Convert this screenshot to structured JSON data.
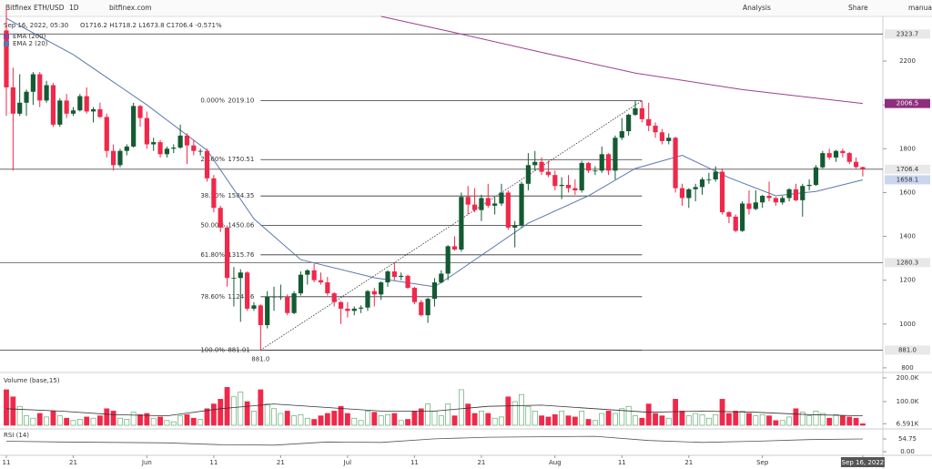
{
  "toolbar": {
    "symbol": "Bitfinex ETH/USD",
    "interval": "1D",
    "site": "bitfinex.com",
    "analysis": "Analysis",
    "share": "Share",
    "mode": "manual"
  },
  "chart_data": [
    {
      "type": "candlestick",
      "legend_date": "Sep 16, 2022, 05:30",
      "legend_ohlc": "O1716.2  H1718.2  L1673.8  C1706.4  -0.571%",
      "up_color": "#145a32",
      "down_color": "#f0284a",
      "xlim": [
        -0.95,
        131.0
      ],
      "xticks": [
        {
          "value": 0,
          "label": "11"
        },
        {
          "value": 10,
          "label": "21"
        },
        {
          "value": 21,
          "label": "Jun"
        },
        {
          "value": 31,
          "label": "11"
        },
        {
          "value": 41,
          "label": "21"
        },
        {
          "value": 51,
          "label": "Jul"
        },
        {
          "value": 61,
          "label": "11"
        },
        {
          "value": 71,
          "label": "21"
        },
        {
          "value": 82,
          "label": "Aug"
        },
        {
          "value": 92,
          "label": "11"
        },
        {
          "value": 102,
          "label": "21"
        },
        {
          "value": 113,
          "label": "Sep"
        },
        {
          "value": 128,
          "label": "Sep 16, 2022"
        }
      ],
      "ylim": [
        783,
        2404
      ],
      "yticks": [
        800,
        1000,
        1200,
        1400,
        1600,
        1800,
        2000,
        2200
      ],
      "ohlc": [
        [
          2340,
          2450,
          1950,
          2080
        ],
        [
          2080,
          2170,
          1700,
          1960
        ],
        [
          1960,
          2140,
          1950,
          2010
        ],
        [
          2010,
          2070,
          1950,
          2060
        ],
        [
          2060,
          2150,
          2000,
          2140
        ],
        [
          2140,
          2150,
          1990,
          2020
        ],
        [
          2020,
          2110,
          2010,
          2090
        ],
        [
          2090,
          2100,
          1900,
          1910
        ],
        [
          1910,
          2030,
          1900,
          2020
        ],
        [
          2020,
          2050,
          1940,
          1960
        ],
        [
          1960,
          1990,
          1950,
          1975
        ],
        [
          1975,
          2050,
          1970,
          2040
        ],
        [
          2040,
          2080,
          1960,
          1970
        ],
        [
          1970,
          1990,
          1920,
          1980
        ],
        [
          1980,
          2010,
          1940,
          1945
        ],
        [
          1945,
          1960,
          1760,
          1790
        ],
        [
          1790,
          1820,
          1700,
          1725
        ],
        [
          1725,
          1800,
          1715,
          1790
        ],
        [
          1790,
          1820,
          1770,
          1810
        ],
        [
          1810,
          2010,
          1805,
          1995
        ],
        [
          1995,
          2000,
          1900,
          1940
        ],
        [
          1940,
          1970,
          1800,
          1820
        ],
        [
          1820,
          1850,
          1790,
          1830
        ],
        [
          1830,
          1840,
          1760,
          1775
        ],
        [
          1775,
          1810,
          1760,
          1800
        ],
        [
          1800,
          1820,
          1780,
          1805
        ],
        [
          1805,
          1910,
          1800,
          1860
        ],
        [
          1860,
          1870,
          1730,
          1815
        ],
        [
          1815,
          1840,
          1770,
          1790
        ],
        [
          1790,
          1800,
          1770,
          1790
        ],
        [
          1790,
          1800,
          1650,
          1665
        ],
        [
          1665,
          1680,
          1510,
          1530
        ],
        [
          1530,
          1540,
          1420,
          1440
        ],
        [
          1440,
          1450,
          1170,
          1210
        ],
        [
          1210,
          1260,
          1080,
          1210
        ],
        [
          1210,
          1250,
          1010,
          1235
        ],
        [
          1235,
          1240,
          1060,
          1070
        ],
        [
          1070,
          1100,
          1060,
          1085
        ],
        [
          1085,
          1090,
          881,
          995
        ],
        [
          995,
          1150,
          980,
          1125
        ],
        [
          1125,
          1170,
          1060,
          1125
        ],
        [
          1125,
          1180,
          1110,
          1125
        ],
        [
          1125,
          1135,
          1040,
          1050
        ],
        [
          1050,
          1150,
          1045,
          1140
        ],
        [
          1140,
          1240,
          1130,
          1225
        ],
        [
          1225,
          1250,
          1180,
          1245
        ],
        [
          1245,
          1275,
          1190,
          1200
        ],
        [
          1200,
          1235,
          1180,
          1190
        ],
        [
          1190,
          1215,
          1130,
          1140
        ],
        [
          1140,
          1145,
          1080,
          1100
        ],
        [
          1100,
          1105,
          1000,
          1070
        ],
        [
          1070,
          1100,
          1030,
          1060
        ],
        [
          1060,
          1080,
          1040,
          1070
        ],
        [
          1070,
          1085,
          1050,
          1075
        ],
        [
          1075,
          1155,
          1060,
          1150
        ],
        [
          1150,
          1165,
          1080,
          1135
        ],
        [
          1135,
          1195,
          1110,
          1190
        ],
        [
          1190,
          1245,
          1170,
          1240
        ],
        [
          1240,
          1280,
          1200,
          1215
        ],
        [
          1215,
          1235,
          1200,
          1220
        ],
        [
          1220,
          1225,
          1160,
          1165
        ],
        [
          1165,
          1170,
          1090,
          1100
        ],
        [
          1100,
          1110,
          1035,
          1040
        ],
        [
          1040,
          1120,
          1005,
          1115
        ],
        [
          1115,
          1210,
          1080,
          1190
        ],
        [
          1190,
          1245,
          1185,
          1230
        ],
        [
          1230,
          1360,
          1200,
          1355
        ],
        [
          1355,
          1400,
          1335,
          1340
        ],
        [
          1340,
          1600,
          1330,
          1580
        ],
        [
          1580,
          1630,
          1500,
          1545
        ],
        [
          1545,
          1620,
          1510,
          1520
        ],
        [
          1520,
          1590,
          1470,
          1575
        ],
        [
          1575,
          1640,
          1530,
          1540
        ],
        [
          1540,
          1580,
          1500,
          1550
        ],
        [
          1550,
          1640,
          1540,
          1600
        ],
        [
          1600,
          1610,
          1430,
          1440
        ],
        [
          1440,
          1470,
          1350,
          1450
        ],
        [
          1450,
          1650,
          1440,
          1640
        ],
        [
          1640,
          1780,
          1610,
          1725
        ],
        [
          1725,
          1790,
          1700,
          1740
        ],
        [
          1740,
          1760,
          1680,
          1695
        ],
        [
          1695,
          1745,
          1670,
          1680
        ],
        [
          1680,
          1700,
          1610,
          1630
        ],
        [
          1630,
          1670,
          1570,
          1635
        ],
        [
          1635,
          1680,
          1600,
          1620
        ],
        [
          1620,
          1660,
          1590,
          1610
        ],
        [
          1610,
          1745,
          1600,
          1735
        ],
        [
          1735,
          1740,
          1690,
          1700
        ],
        [
          1700,
          1720,
          1680,
          1700
        ],
        [
          1700,
          1810,
          1690,
          1775
        ],
        [
          1775,
          1780,
          1680,
          1700
        ],
        [
          1700,
          1860,
          1660,
          1850
        ],
        [
          1850,
          1940,
          1840,
          1880
        ],
        [
          1880,
          1960,
          1860,
          1955
        ],
        [
          1955,
          2019,
          1950,
          1985
        ],
        [
          1985,
          2019.1,
          1920,
          1935
        ],
        [
          1935,
          2010,
          1880,
          1905
        ],
        [
          1905,
          1920,
          1850,
          1875
        ],
        [
          1875,
          1890,
          1820,
          1835
        ],
        [
          1835,
          1870,
          1820,
          1850
        ],
        [
          1850,
          1855,
          1600,
          1620
        ],
        [
          1620,
          1640,
          1540,
          1575
        ],
        [
          1575,
          1620,
          1530,
          1615
        ],
        [
          1615,
          1640,
          1560,
          1625
        ],
        [
          1625,
          1670,
          1590,
          1660
        ],
        [
          1660,
          1690,
          1640,
          1660
        ],
        [
          1660,
          1720,
          1650,
          1695
        ],
        [
          1695,
          1710,
          1500,
          1510
        ],
        [
          1510,
          1515,
          1460,
          1490
        ],
        [
          1490,
          1500,
          1420,
          1425
        ],
        [
          1425,
          1560,
          1420,
          1550
        ],
        [
          1550,
          1610,
          1500,
          1525
        ],
        [
          1525,
          1610,
          1520,
          1555
        ],
        [
          1555,
          1590,
          1530,
          1585
        ],
        [
          1585,
          1650,
          1560,
          1575
        ],
        [
          1575,
          1580,
          1540,
          1555
        ],
        [
          1555,
          1585,
          1545,
          1575
        ],
        [
          1575,
          1620,
          1560,
          1615
        ],
        [
          1615,
          1640,
          1560,
          1565
        ],
        [
          1565,
          1640,
          1490,
          1630
        ],
        [
          1630,
          1660,
          1610,
          1635
        ],
        [
          1635,
          1725,
          1630,
          1715
        ],
        [
          1715,
          1790,
          1710,
          1780
        ],
        [
          1780,
          1800,
          1750,
          1760
        ],
        [
          1760,
          1795,
          1740,
          1790
        ],
        [
          1790,
          1800,
          1760,
          1780
        ],
        [
          1780,
          1785,
          1730,
          1740
        ],
        [
          1740,
          1760,
          1710,
          1716.2
        ],
        [
          1716.2,
          1718.2,
          1673.8,
          1706.4
        ]
      ],
      "series": [
        {
          "name": "EMA (200)",
          "color": "#9c3f8c",
          "x": [
            56,
            67,
            80,
            94,
            110,
            128
          ],
          "values": [
            2404,
            2330,
            2240,
            2145,
            2070,
            2006.5
          ]
        },
        {
          "name": "EMA 2 (20)",
          "color": "#5a77b0",
          "x": [
            0,
            10,
            21,
            30,
            37,
            44,
            55,
            64,
            67,
            78,
            87,
            94,
            101,
            108,
            115,
            121,
            128
          ],
          "values": [
            2395,
            2230,
            2000,
            1793,
            1480,
            1294,
            1211,
            1170,
            1230,
            1460,
            1585,
            1710,
            1770,
            1668,
            1585,
            1605,
            1658.1
          ]
        }
      ],
      "fib": {
        "x": [
          38,
          95
        ],
        "color": "#333333",
        "levels": [
          {
            "ratio": "0.000%",
            "price": {
              "value": 2019.1,
              "label": "2019.10"
            }
          },
          {
            "ratio": "23.60%",
            "price": 1750.51
          },
          {
            "ratio": "38.20%",
            "price": 1584.35
          },
          {
            "ratio": "50.00%",
            "price": 1450.06
          },
          {
            "ratio": "61.80%",
            "price": 1315.76
          },
          {
            "ratio": "78.60%",
            "price": 1124.56
          },
          {
            "ratio": "100.0%",
            "price": 881.01
          }
        ]
      },
      "low_label": {
        "value": 881,
        "label": "881.0"
      },
      "price_lines": [
        {
          "price": 2323.7,
          "color": "#e8e8e8",
          "text_color": "#333333",
          "line": true
        },
        {
          "price": 2006.5,
          "color": "#8e2f7e",
          "text_color": "#ffffff",
          "line": false
        },
        {
          "price": 1706.4,
          "color": "#e8e8e8",
          "text_color": "#333333",
          "line": true
        },
        {
          "price": 1658.1,
          "color": "#c9d6ee",
          "text_color": "#333333",
          "line": false
        },
        {
          "price": 1280.3,
          "color": "#e8e8e8",
          "text_color": "#333333",
          "line": true
        },
        {
          "price": {
            "value": 881,
            "label": "881.0"
          },
          "color": "#e8e8e8",
          "text_color": "#333333",
          "line": true
        }
      ]
    },
    {
      "type": "bar",
      "name": "Volume (base,15)",
      "up_color": "#4a9d5b",
      "down_color": "#f0284a",
      "ylim": [
        0,
        219
      ],
      "yticks": [
        {
          "value": 200,
          "label": "200.0K"
        },
        {
          "value": 100,
          "label": "100.0K"
        },
        {
          "value": 6.591,
          "label": "6.591K"
        }
      ],
      "values": [
        150,
        120,
        80,
        40,
        30,
        50,
        35,
        60,
        40,
        30,
        20,
        25,
        35,
        30,
        40,
        70,
        60,
        30,
        25,
        55,
        45,
        50,
        30,
        35,
        20,
        15,
        40,
        45,
        30,
        25,
        70,
        90,
        110,
        160,
        120,
        140,
        100,
        60,
        150,
        90,
        70,
        50,
        60,
        40,
        45,
        30,
        25,
        40,
        50,
        60,
        80,
        50,
        30,
        20,
        60,
        55,
        40,
        45,
        50,
        20,
        25,
        60,
        70,
        90,
        60,
        40,
        90,
        40,
        150,
        90,
        50,
        60,
        50,
        30,
        35,
        120,
        100,
        130,
        80,
        60,
        40,
        35,
        45,
        60,
        40,
        35,
        60,
        25,
        20,
        50,
        60,
        50,
        70,
        80,
        40,
        30,
        90,
        50,
        40,
        30,
        110,
        60,
        40,
        50,
        45,
        30,
        45,
        110,
        50,
        60,
        60,
        50,
        40,
        45,
        40,
        20,
        20,
        35,
        70,
        55,
        40,
        60,
        50,
        30,
        45,
        40,
        35,
        30,
        6.591
      ],
      "series": [
        {
          "color": "#333333",
          "x": [
            0,
            8,
            16,
            24,
            32,
            40,
            48,
            56,
            64,
            72,
            80,
            88,
            96,
            104,
            112,
            120,
            128
          ],
          "values": [
            70,
            60,
            45,
            40,
            70,
            90,
            75,
            60,
            60,
            80,
            85,
            70,
            55,
            60,
            55,
            45,
            40
          ]
        }
      ]
    },
    {
      "type": "line",
      "name": "RSI (14)",
      "ylim": [
        0,
        86
      ],
      "yticks": [
        54.75,
        {
          "value": 0,
          "label": "0.00"
        }
      ],
      "series": [
        {
          "color": "#555555",
          "x": [
            0,
            8,
            16,
            24,
            32,
            40,
            48,
            56,
            64,
            72,
            80,
            88,
            96,
            104,
            112,
            120,
            128
          ],
          "values": [
            45,
            42,
            40,
            38,
            30,
            28,
            42,
            40,
            55,
            62,
            64,
            66,
            48,
            40,
            45,
            52,
            54.75
          ]
        }
      ]
    }
  ]
}
